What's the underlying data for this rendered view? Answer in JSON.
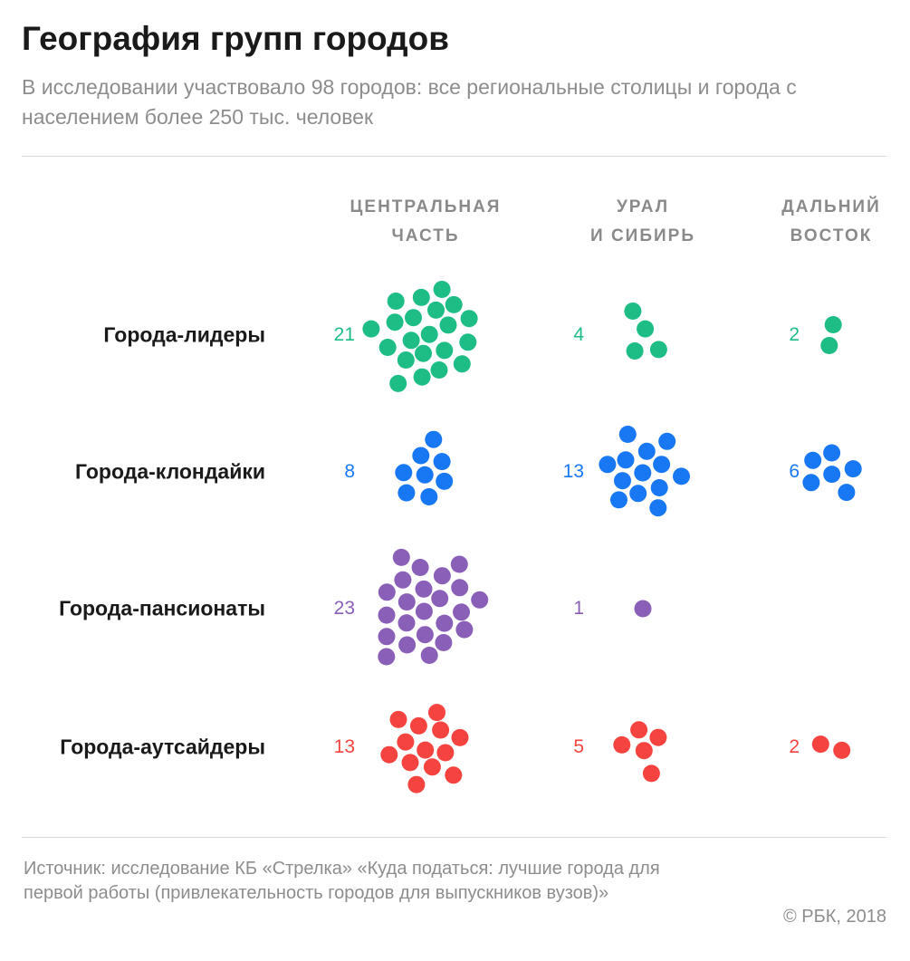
{
  "header": {
    "title": "География групп городов",
    "subtitle": "В исследовании участвовало 98 городов: все региональные столицы и города с населением более 250 тыс. человек"
  },
  "columns": [
    {
      "line1": "ЦЕНТРАЛЬНАЯ",
      "line2": "ЧАСТЬ"
    },
    {
      "line1": "УРАЛ",
      "line2": "И СИБИРЬ"
    },
    {
      "line1": "ДАЛЬНИЙ",
      "line2": "ВОСТОК"
    }
  ],
  "rows": [
    {
      "label": "Города-лидеры",
      "color": "#1dbd85"
    },
    {
      "label": "Города-клондайки",
      "color": "#1877f2"
    },
    {
      "label": "Города-пансионаты",
      "color": "#8a5fb8"
    },
    {
      "label": "Города-аутсайдеры",
      "color": "#f5443f"
    }
  ],
  "chart_data": {
    "type": "bubble-count-grid",
    "categories": [
      "ЦЕНТРАЛЬНАЯ ЧАСТЬ",
      "УРАЛ И СИБИРЬ",
      "ДАЛЬНИЙ ВОСТОК"
    ],
    "series": [
      {
        "name": "Города-лидеры",
        "values": [
          21,
          4,
          2
        ]
      },
      {
        "name": "Города-клондайки",
        "values": [
          8,
          13,
          6
        ]
      },
      {
        "name": "Города-пансионаты",
        "values": [
          23,
          1,
          null
        ]
      },
      {
        "name": "Города-аутсайдеры",
        "values": [
          13,
          5,
          2
        ]
      }
    ]
  },
  "footer": {
    "source": "Источник: исследование КБ «Стрелка» «Куда податься: лучшие города для первой работы (привлекательность городов для выпускников вузов)»",
    "copyright": "© РБК, 2018"
  }
}
